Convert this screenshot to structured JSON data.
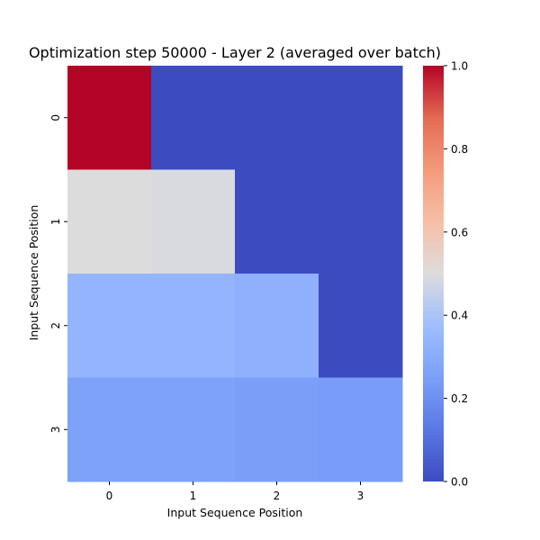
{
  "chart_data": {
    "type": "heatmap",
    "title": "Optimization step 50000 - Layer 2 (averaged over batch)",
    "xlabel": "Input Sequence Position",
    "ylabel": "Input Sequence Position",
    "x_categories": [
      "0",
      "1",
      "2",
      "3"
    ],
    "y_categories": [
      "0",
      "1",
      "2",
      "3"
    ],
    "values": [
      [
        1.0,
        0.0,
        0.0,
        0.0
      ],
      [
        0.5,
        0.49,
        0.0,
        0.0
      ],
      [
        0.34,
        0.34,
        0.32,
        0.0
      ],
      [
        0.26,
        0.26,
        0.25,
        0.24
      ]
    ],
    "colormap": "coolwarm",
    "vmin": 0.0,
    "vmax": 1.0,
    "colorbar_ticks": [
      "0.0",
      "0.2",
      "0.4",
      "0.6",
      "0.8",
      "1.0"
    ],
    "colorbar_tick_values": [
      0.0,
      0.2,
      0.4,
      0.6,
      0.8,
      1.0
    ],
    "grid": false,
    "legend": "colorbar-right"
  }
}
